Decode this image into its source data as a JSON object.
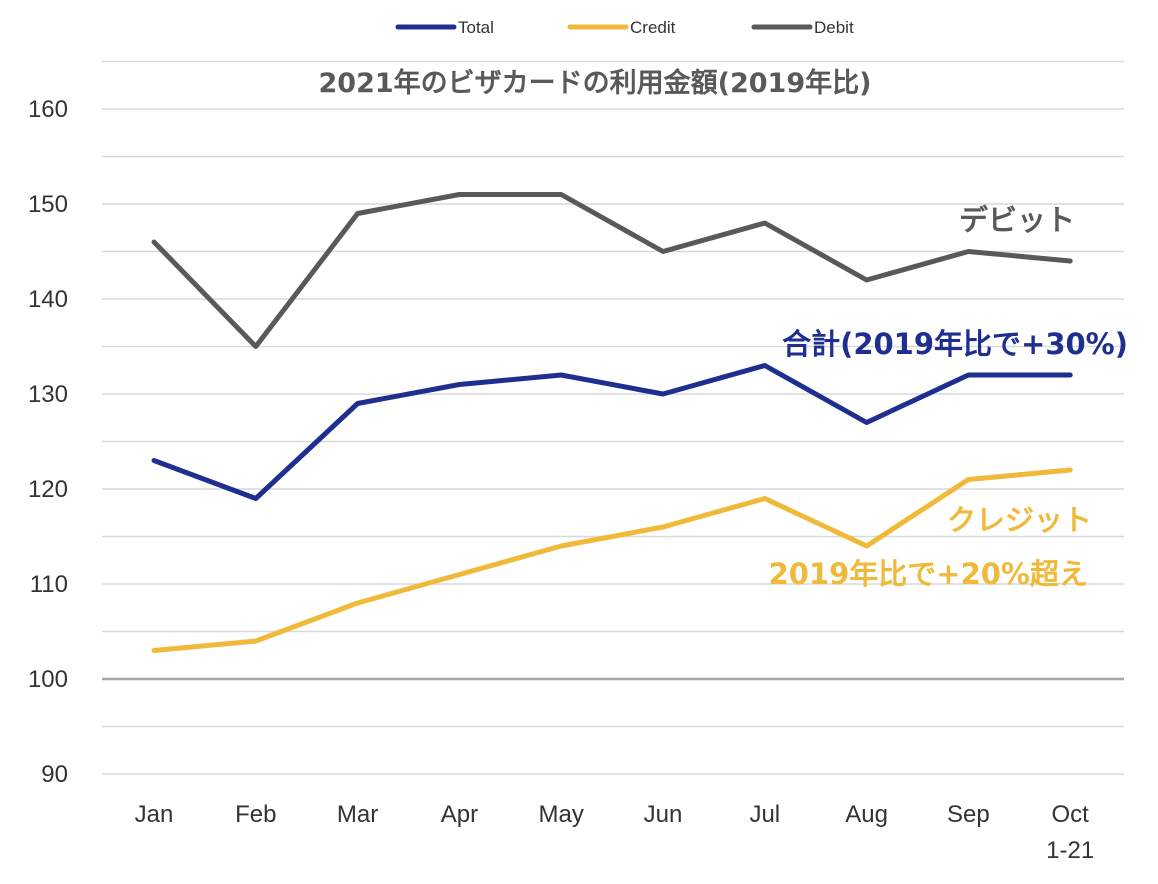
{
  "chart_data": {
    "type": "line",
    "title": "2021年のビザカードの利用金額(2019年比)",
    "categories": [
      "Jan",
      "Feb",
      "Mar",
      "Apr",
      "May",
      "Jun",
      "Jul",
      "Aug",
      "Sep",
      "Oct"
    ],
    "last_category_sublabel": "1-21",
    "ylim": [
      90,
      160
    ],
    "yticks": [
      90,
      100,
      110,
      120,
      130,
      140,
      150,
      160
    ],
    "grid": true,
    "legend_position": "top",
    "baseline": 100,
    "series": [
      {
        "name": "Total",
        "color": "#1f2f8f",
        "values": [
          123,
          119,
          129,
          131,
          132,
          130,
          133,
          127,
          132,
          132
        ]
      },
      {
        "name": "Credit",
        "color": "#f0b93a",
        "values": [
          103,
          104,
          108,
          111,
          114,
          116,
          119,
          114,
          121,
          122
        ]
      },
      {
        "name": "Debit",
        "color": "#595959",
        "values": [
          146,
          135,
          149,
          151,
          151,
          145,
          148,
          142,
          145,
          144
        ]
      }
    ],
    "annotations": {
      "debit": "デビット",
      "total": "合計(2019年比で+30%)",
      "credit_line1": "クレジット",
      "credit_line2": "2019年比で+20%超え"
    }
  }
}
